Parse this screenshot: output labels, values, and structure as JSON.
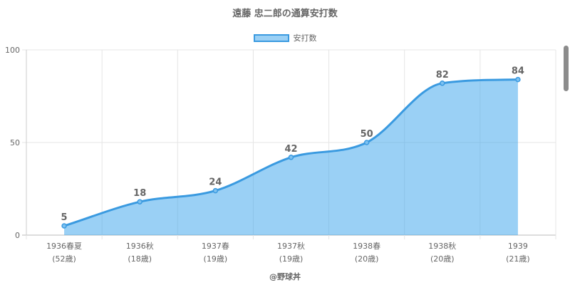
{
  "title": "遠藤 忠二郎の通算安打数",
  "legend_label": "安打数",
  "footer": "@野球丼",
  "colors": {
    "line": "#3a9ae0",
    "fill": "rgba(54,162,235,0.5)",
    "grid": "#e5e5e5",
    "text": "#666666"
  },
  "chart_data": {
    "type": "area",
    "title": "遠藤 忠二郎の通算安打数",
    "series": [
      {
        "name": "安打数",
        "values": [
          5,
          18,
          24,
          42,
          50,
          82,
          84
        ]
      }
    ],
    "categories": [
      [
        "1936春夏",
        "(52歳)"
      ],
      [
        "1936秋",
        "(18歳)"
      ],
      [
        "1937春",
        "(19歳)"
      ],
      [
        "1937秋",
        "(19歳)"
      ],
      [
        "1938春",
        "(20歳)"
      ],
      [
        "1938秋",
        "(20歳)"
      ],
      [
        "1939",
        "(21歳)"
      ]
    ],
    "ylim": [
      0,
      100
    ],
    "yticks": [
      0,
      50,
      100
    ],
    "grid": true,
    "legend": "top"
  }
}
